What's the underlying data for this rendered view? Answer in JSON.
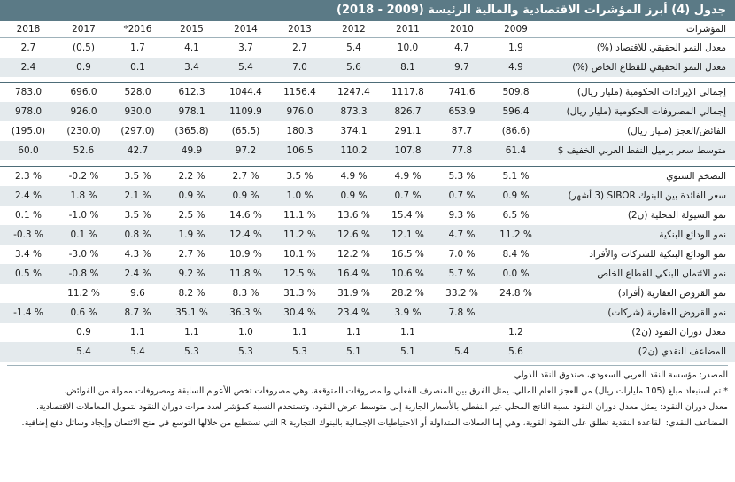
{
  "title": "جدول (4) أبرز المؤشرات الاقتصادية والمالية الرئيسة (2009 - 2018)",
  "header": {
    "label": "المؤشرات",
    "years": [
      "2009",
      "2010",
      "2011",
      "2012",
      "2013",
      "2014",
      "2015",
      "2016*",
      "2017",
      "2018"
    ]
  },
  "groups": [
    [
      {
        "label": "معدل النمو الحقيقي للاقتصاد (%)",
        "values": [
          "1.9",
          "4.7",
          "10.0",
          "5.4",
          "2.7",
          "3.7",
          "4.1",
          "1.7",
          "(0.5)",
          "2.7"
        ]
      },
      {
        "label": "معدل النمو الحقيقي للقطاع الخاص (%)",
        "values": [
          "4.9",
          "9.7",
          "8.1",
          "5.6",
          "7.0",
          "5.4",
          "3.4",
          "0.1",
          "0.9",
          "2.4"
        ]
      }
    ],
    [
      {
        "label": "إجمالي الإيرادات الحكومية (مليار ريال)",
        "values": [
          "509.8",
          "741.6",
          "1117.8",
          "1247.4",
          "1156.4",
          "1044.4",
          "612.3",
          "528.0",
          "696.0",
          "783.0"
        ]
      },
      {
        "label": "إجمالي المصروفات الحكومية (مليار ريال)",
        "values": [
          "596.4",
          "653.9",
          "826.7",
          "873.3",
          "976.0",
          "1109.9",
          "978.1",
          "930.0",
          "926.0",
          "978.0"
        ]
      },
      {
        "label": "الفائض/العجز (مليار ريال)",
        "values": [
          "(86.6)",
          "87.7",
          "291.1",
          "374.1",
          "180.3",
          "(65.5)",
          "(365.8)",
          "(297.0)",
          "(230.0)",
          "(195.0)"
        ]
      },
      {
        "label": "متوسط سعر برميل النفط العربي الخفيف $",
        "values": [
          "61.4",
          "77.8",
          "107.8",
          "110.2",
          "106.5",
          "97.2",
          "49.9",
          "42.7",
          "52.6",
          "60.0"
        ]
      }
    ],
    [
      {
        "label": "التضخم السنوي",
        "values": [
          "5.1 %",
          "5.3 %",
          "4.9 %",
          "4.9 %",
          "3.5 %",
          "2.7 %",
          "2.2 %",
          "3.5 %",
          "-0.2 %",
          "2.3 %"
        ]
      },
      {
        "label": "سعر الفائدة بين البنوك SIBOR (3 أشهر)",
        "values": [
          "0.9 %",
          "0.7 %",
          "0.7 %",
          "0.9 %",
          "1.0 %",
          "0.9 %",
          "0.9 %",
          "2.1 %",
          "1.8 %",
          "2.4 %"
        ]
      },
      {
        "label": "نمو السيولة المحلية (ن2)",
        "values": [
          "6.5 %",
          "9.3 %",
          "15.4 %",
          "13.6 %",
          "11.1 %",
          "14.6 %",
          "2.5 %",
          "3.5 %",
          "-1.0 %",
          "0.1 %"
        ]
      },
      {
        "label": "نمو الودائع البنكية",
        "values": [
          "11.2 %",
          "4.7 %",
          "12.1 %",
          "12.6 %",
          "11.2 %",
          "12.4 %",
          "1.9 %",
          "0.8 %",
          "0.1 %",
          "-0.3 %"
        ]
      },
      {
        "label": "نمو الودائع البنكية للشركات والأفراد",
        "values": [
          "8.4 %",
          "7.0 %",
          "16.5 %",
          "12.2 %",
          "10.1 %",
          "10.9 %",
          "2.7 %",
          "4.3 %",
          "-3.0 %",
          "3.4 %"
        ]
      },
      {
        "label": "نمو الائتمان البنكي للقطاع الخاص",
        "values": [
          "0.0 %",
          "5.7 %",
          "10.6 %",
          "16.4 %",
          "12.5 %",
          "11.8 %",
          "9.2 %",
          "2.4 %",
          "-0.8 %",
          "0.5 %"
        ]
      },
      {
        "label": "نمو القروض العقارية (أفراد)",
        "values": [
          "24.8 %",
          "33.2 %",
          "28.2 %",
          "31.9 %",
          "31.3 %",
          "8.3 %",
          "8.2 %",
          "9.6",
          "11.2 %",
          ""
        ]
      },
      {
        "label": "نمو القروض العقارية (شركات)",
        "values": [
          "",
          "7.8 %",
          "3.9 %",
          "23.4 %",
          "30.4 %",
          "36.3 %",
          "35.1 %",
          "8.7 %",
          "0.6 %",
          "-1.4 %"
        ]
      },
      {
        "label": "معدل دوران النقود (ن2)",
        "values": [
          "1.2",
          "",
          "1.1",
          "1.1",
          "1.1",
          "1.0",
          "1.1",
          "1.1",
          "0.9",
          ""
        ]
      },
      {
        "label": "المضاعف النقدي (ن2)",
        "values": [
          "5.6",
          "5.4",
          "5.1",
          "5.1",
          "5.3",
          "5.3",
          "5.3",
          "5.4",
          "5.4",
          ""
        ]
      }
    ]
  ],
  "notes": {
    "source": "المصدر: مؤسسة النقد العربي السعودي، صندوق النقد الدولي",
    "note1": "* تم استبعاد مبلغ (105 مليارات ريال) من العجز للعام المالي. يمثل الفرق بين المنصرف الفعلي والمصروفات المتوقعة، وهي مصروفات تخص الأعوام السابقة ومصروفات ممولة من الفوائض.",
    "note2": "معدل دوران النقود: يمثل معدل دوران النقود نسبة الناتج المحلي غير النفطي بالأسعار الجارية إلى متوسط عرض النقود، وتستخدم النسبة كمؤشر لعدد مرات دوران النقود لتمويل المعاملات الاقتصادية.",
    "note3": "المضاعف النقدي: القاعدة النقدية تطلق على النقود القوية، وهي إما العملات المتداولة أو الاحتياطيات الإجمالية بالبنوك التجارية R التي تستطيع من خلالها التوسع في منح الائتمان وإيجاد وسائل دفع إضافية."
  }
}
